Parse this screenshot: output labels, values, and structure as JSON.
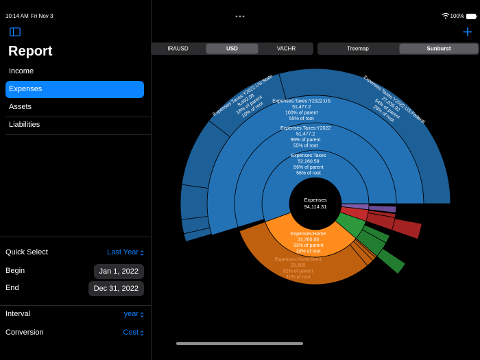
{
  "status_bar": {
    "time": "10:14 AM",
    "date": "Fri Nov 3",
    "battery": "100%"
  },
  "sidebar": {
    "title": "Report",
    "nav": [
      "Income",
      "Expenses",
      "Assets",
      "Liabilities"
    ],
    "selected": 1,
    "settings": [
      {
        "label": "Quick Select",
        "value": "Last Year"
      },
      {
        "label": "Begin",
        "value": "Jan 1, 2022"
      },
      {
        "label": "End",
        "value": "Dec 31, 2022"
      },
      {
        "label": "Interval",
        "value": "year"
      },
      {
        "label": "Conversion",
        "value": "Cost"
      }
    ]
  },
  "toolbar": {
    "currencies": [
      "IRAUSD",
      "USD",
      "VACHR"
    ],
    "selected_currency": 1,
    "views": [
      "Treemap",
      "Sunburst"
    ],
    "selected_view": 1
  },
  "sunburst": {
    "root": {
      "name": "Expenses",
      "value": 94114.31,
      "value_label": "94,114.31",
      "children": [
        {
          "name": "Expenses:Taxes",
          "value": 52260.59,
          "value_label": "52,260.59",
          "lines": [
            "56% of parent",
            "56% of root"
          ],
          "color": "#2372b5",
          "children": [
            {
              "name": "Expenses:Taxes:Y2022",
              "value": 51477.2,
              "value_label": "51,477.2",
              "lines": [
                "99% of parent",
                "55% of root"
              ],
              "color": "#2372b5",
              "children": [
                {
                  "name": "Expenses:Taxes:Y2022:US",
                  "value": 51477.2,
                  "value_label": "51,477.2",
                  "lines": [
                    "100% of parent",
                    "55% of root"
                  ],
                  "color": "#2372b5",
                  "children": [
                    {
                      "name": "Expenses:Taxes:Y2022:US:Federal",
                      "value": 27635.92,
                      "value_label": "27,635.92",
                      "lines": [
                        "54% of parent",
                        "29% of root"
                      ],
                      "color": "#1d5f97"
                    },
                    {
                      "name": "Expenses:Taxes:Y2022:US:State",
                      "value": 9492.08,
                      "value_label": "9,492.08",
                      "lines": [
                        "18% of parent",
                        "10% of root"
                      ],
                      "color": "#1d5f97"
                    },
                    {
                      "value": 7800,
                      "color": "#1d5f97"
                    },
                    {
                      "value": 3900,
                      "color": "#1d5f97"
                    },
                    {
                      "value": 1600,
                      "color": "#1d5f97"
                    },
                    {
                      "value": 900,
                      "color": "#1d5f97"
                    }
                  ]
                }
              ]
            }
          ]
        },
        {
          "name": "Expenses:Home",
          "value": 31260.89,
          "value_label": "31,260.89",
          "lines": [
            "33% of parent",
            "33% of root"
          ],
          "color": "#ff8c1c",
          "children": [
            {
              "name": "Expenses:Home:Rent",
              "value": 28800,
              "value_label": "28,800",
              "lines": [
                "92% of parent",
                "31% of root"
              ],
              "color": "#bf600f"
            },
            {
              "value": 1400,
              "color": "#bf600f"
            },
            {
              "value": 700,
              "color": "#bf600f"
            },
            {
              "value": 360,
              "color": "#bf600f"
            }
          ]
        },
        {
          "value": 5600,
          "color": "#2c9a3c",
          "children": [
            {
              "value": 3000,
              "color": "#237d31",
              "children": [
                {
                  "value": 1800,
                  "color": "#237d31"
                }
              ]
            },
            {
              "value": 1500,
              "color": "#237d31"
            }
          ]
        },
        {
          "value": 3300,
          "color": "#c22b2b",
          "children": [
            {
              "value": 2400,
              "color": "#a32222",
              "children": [
                {
                  "value": 2200,
                  "color": "#a32222"
                }
              ]
            },
            {
              "value": 700,
              "color": "#a32222"
            }
          ]
        },
        {
          "value": 1600,
          "color": "#7c5ca9",
          "children": [
            {
              "value": 1200,
              "color": "#6a4b95"
            }
          ]
        }
      ]
    }
  }
}
